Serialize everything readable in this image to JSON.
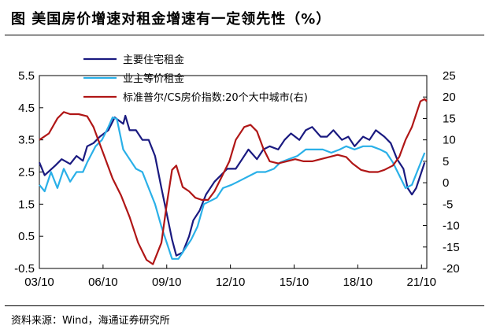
{
  "title": "图  美国房价增速对租金增速有一定领先性（%）",
  "source": "资料来源：Wind，海通证券研究所",
  "chart_data": {
    "type": "line",
    "x_ticks": [
      "03/10",
      "06/10",
      "09/10",
      "12/10",
      "15/10",
      "18/10",
      "21/10"
    ],
    "x_tick_values": [
      2003.75,
      2006.75,
      2009.75,
      2012.75,
      2015.75,
      2018.75,
      2021.75
    ],
    "xlim": [
      2003.75,
      2022.0
    ],
    "y_left": {
      "ticks": [
        "5.5",
        "4.5",
        "3.5",
        "2.5",
        "1.5",
        "0.5",
        "-0.5"
      ],
      "range": [
        -0.5,
        5.5
      ]
    },
    "y_right": {
      "ticks": [
        "25",
        "20",
        "15",
        "10",
        "5",
        "0",
        "-5",
        "-10",
        "-15",
        "-20"
      ],
      "range": [
        -20,
        25
      ]
    },
    "grid": false,
    "legend_position": "top-left",
    "series": [
      {
        "name": "主要住宅租金",
        "axis": "left",
        "color": "#1a1a80",
        "points": [
          [
            2003.75,
            2.8
          ],
          [
            2004.0,
            2.4
          ],
          [
            2004.5,
            2.7
          ],
          [
            2004.8,
            2.9
          ],
          [
            2005.2,
            2.75
          ],
          [
            2005.5,
            3.0
          ],
          [
            2005.8,
            2.85
          ],
          [
            2006.0,
            3.3
          ],
          [
            2006.3,
            3.4
          ],
          [
            2006.6,
            3.6
          ],
          [
            2007.0,
            3.8
          ],
          [
            2007.3,
            4.2
          ],
          [
            2007.7,
            4.0
          ],
          [
            2007.8,
            4.25
          ],
          [
            2008.0,
            3.8
          ],
          [
            2008.3,
            3.8
          ],
          [
            2008.6,
            3.5
          ],
          [
            2008.9,
            3.5
          ],
          [
            2009.2,
            3.0
          ],
          [
            2009.5,
            2.0
          ],
          [
            2009.75,
            1.2
          ],
          [
            2010.0,
            0.4
          ],
          [
            2010.2,
            -0.1
          ],
          [
            2010.5,
            0.0
          ],
          [
            2010.8,
            0.5
          ],
          [
            2011.0,
            1.0
          ],
          [
            2011.3,
            1.3
          ],
          [
            2011.6,
            1.8
          ],
          [
            2012.0,
            2.2
          ],
          [
            2012.3,
            2.4
          ],
          [
            2012.6,
            2.6
          ],
          [
            2013.0,
            2.6
          ],
          [
            2013.3,
            2.9
          ],
          [
            2013.6,
            3.2
          ],
          [
            2014.0,
            2.9
          ],
          [
            2014.3,
            3.2
          ],
          [
            2014.6,
            3.3
          ],
          [
            2015.0,
            3.2
          ],
          [
            2015.3,
            3.5
          ],
          [
            2015.6,
            3.7
          ],
          [
            2016.0,
            3.5
          ],
          [
            2016.3,
            3.8
          ],
          [
            2016.6,
            3.9
          ],
          [
            2017.0,
            3.6
          ],
          [
            2017.3,
            3.6
          ],
          [
            2017.6,
            3.8
          ],
          [
            2018.0,
            3.5
          ],
          [
            2018.3,
            3.6
          ],
          [
            2018.6,
            3.3
          ],
          [
            2019.0,
            3.6
          ],
          [
            2019.3,
            3.5
          ],
          [
            2019.6,
            3.8
          ],
          [
            2020.0,
            3.6
          ],
          [
            2020.3,
            3.4
          ],
          [
            2020.6,
            2.9
          ],
          [
            2020.9,
            2.6
          ],
          [
            2021.1,
            2.0
          ],
          [
            2021.3,
            1.8
          ],
          [
            2021.5,
            2.0
          ],
          [
            2021.7,
            2.4
          ],
          [
            2021.9,
            2.8
          ]
        ]
      },
      {
        "name": "业主等价租金",
        "axis": "left",
        "color": "#2ab0e8",
        "points": [
          [
            2003.75,
            2.1
          ],
          [
            2004.0,
            1.9
          ],
          [
            2004.3,
            2.5
          ],
          [
            2004.6,
            2.0
          ],
          [
            2004.9,
            2.6
          ],
          [
            2005.2,
            2.2
          ],
          [
            2005.5,
            2.5
          ],
          [
            2005.8,
            2.5
          ],
          [
            2006.0,
            2.8
          ],
          [
            2006.4,
            3.3
          ],
          [
            2006.7,
            3.5
          ],
          [
            2007.0,
            3.9
          ],
          [
            2007.2,
            4.2
          ],
          [
            2007.4,
            4.15
          ],
          [
            2007.7,
            3.2
          ],
          [
            2008.0,
            2.9
          ],
          [
            2008.3,
            2.6
          ],
          [
            2008.6,
            2.5
          ],
          [
            2008.9,
            2.0
          ],
          [
            2009.2,
            1.5
          ],
          [
            2009.5,
            0.8
          ],
          [
            2009.8,
            0.2
          ],
          [
            2010.0,
            -0.2
          ],
          [
            2010.3,
            -0.2
          ],
          [
            2010.6,
            0.1
          ],
          [
            2010.9,
            0.4
          ],
          [
            2011.2,
            0.8
          ],
          [
            2011.5,
            1.5
          ],
          [
            2011.8,
            1.6
          ],
          [
            2012.1,
            1.7
          ],
          [
            2012.4,
            2.0
          ],
          [
            2012.8,
            2.1
          ],
          [
            2013.1,
            2.2
          ],
          [
            2013.4,
            2.3
          ],
          [
            2013.7,
            2.4
          ],
          [
            2014.0,
            2.5
          ],
          [
            2014.4,
            2.5
          ],
          [
            2014.8,
            2.6
          ],
          [
            2015.1,
            2.8
          ],
          [
            2015.5,
            2.9
          ],
          [
            2015.9,
            3.0
          ],
          [
            2016.3,
            3.2
          ],
          [
            2016.7,
            3.2
          ],
          [
            2017.1,
            3.2
          ],
          [
            2017.5,
            3.1
          ],
          [
            2017.9,
            3.2
          ],
          [
            2018.2,
            3.3
          ],
          [
            2018.6,
            3.2
          ],
          [
            2019.0,
            3.3
          ],
          [
            2019.4,
            3.3
          ],
          [
            2019.8,
            3.2
          ],
          [
            2020.1,
            3.1
          ],
          [
            2020.4,
            2.8
          ],
          [
            2020.7,
            2.4
          ],
          [
            2021.0,
            2.0
          ],
          [
            2021.3,
            2.1
          ],
          [
            2021.6,
            2.6
          ],
          [
            2021.9,
            3.1
          ]
        ]
      },
      {
        "name": "标准普尔/CS房价指数:20个大中城市(右)",
        "axis": "right",
        "color": "#b01616",
        "points": [
          [
            2003.75,
            10
          ],
          [
            2004.2,
            11.5
          ],
          [
            2004.6,
            15
          ],
          [
            2004.9,
            16.5
          ],
          [
            2005.2,
            16
          ],
          [
            2005.6,
            16
          ],
          [
            2006.0,
            15.5
          ],
          [
            2006.3,
            13
          ],
          [
            2006.6,
            9
          ],
          [
            2006.9,
            5
          ],
          [
            2007.2,
            1
          ],
          [
            2007.6,
            -3
          ],
          [
            2008.0,
            -8
          ],
          [
            2008.4,
            -14
          ],
          [
            2008.8,
            -18
          ],
          [
            2009.1,
            -19
          ],
          [
            2009.5,
            -14
          ],
          [
            2009.75,
            -5
          ],
          [
            2010.0,
            3
          ],
          [
            2010.2,
            4
          ],
          [
            2010.5,
            -1
          ],
          [
            2010.8,
            -2
          ],
          [
            2011.1,
            -3.5
          ],
          [
            2011.4,
            -4
          ],
          [
            2011.7,
            -4
          ],
          [
            2012.0,
            -2
          ],
          [
            2012.3,
            1
          ],
          [
            2012.7,
            5
          ],
          [
            2013.0,
            10
          ],
          [
            2013.4,
            13
          ],
          [
            2013.7,
            13.5
          ],
          [
            2014.0,
            12
          ],
          [
            2014.3,
            8
          ],
          [
            2014.6,
            5
          ],
          [
            2015.0,
            4.5
          ],
          [
            2015.4,
            5
          ],
          [
            2015.8,
            5.5
          ],
          [
            2016.2,
            5
          ],
          [
            2016.6,
            5
          ],
          [
            2017.0,
            5.5
          ],
          [
            2017.4,
            6
          ],
          [
            2017.8,
            6.5
          ],
          [
            2018.2,
            6
          ],
          [
            2018.5,
            4.5
          ],
          [
            2018.9,
            3
          ],
          [
            2019.3,
            2.5
          ],
          [
            2019.7,
            2.5
          ],
          [
            2020.0,
            3
          ],
          [
            2020.4,
            4
          ],
          [
            2020.7,
            6
          ],
          [
            2021.0,
            10
          ],
          [
            2021.3,
            13
          ],
          [
            2021.5,
            16
          ],
          [
            2021.7,
            19
          ],
          [
            2021.9,
            19.5
          ],
          [
            2022.0,
            19
          ]
        ]
      }
    ]
  }
}
